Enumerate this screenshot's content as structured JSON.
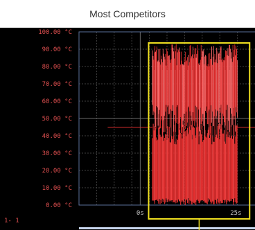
{
  "header": {
    "title": "Most Competitors"
  },
  "chart_data": {
    "type": "line",
    "title": "Most Competitors",
    "channel_label": "1- 1",
    "y_unit": "°C",
    "ylim": [
      0,
      100
    ],
    "y_ticks": [
      "100.00 °C",
      "90.00 °C",
      "80.00 °C",
      "70.00 °C",
      "60.00 °C",
      "50.00 °C",
      "40.00 °C",
      "30.00 °C",
      "20.00 °C",
      "10.00 °C",
      "0.00 °C"
    ],
    "xlim": [
      -16,
      30
    ],
    "x_ticks": [
      {
        "value": 0,
        "label": "0s"
      },
      {
        "value": 25,
        "label": "25s"
      }
    ],
    "baseline_value": 45,
    "burst_x_range": [
      3.2,
      25.4
    ],
    "burst_upper_range": [
      80,
      93
    ],
    "burst_lower_range": [
      0,
      45
    ],
    "highlight_box_x": [
      2.2,
      28.6
    ],
    "colors": {
      "background": "#000000",
      "signal": "#e53030",
      "signal_light": "#ff6a6a",
      "grid": "#3f3f3f",
      "axis_labels": "#e05050",
      "highlight": "#f0e020",
      "plot_frame": "#5a6f9a"
    }
  }
}
